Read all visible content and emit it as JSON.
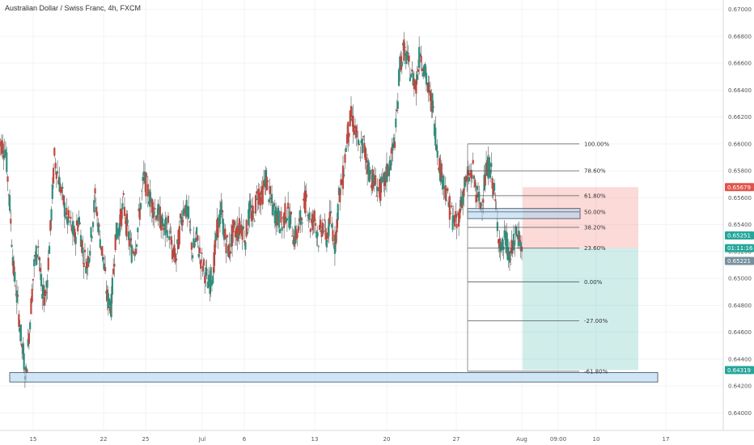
{
  "header": {
    "title": "Australian Dollar / Swiss Franc, 4h, FXCM"
  },
  "colors": {
    "up": "#2f8f7c",
    "down": "#c2473d",
    "grid": "#f0f3fa",
    "risk": "rgba(242,139,130,0.32)",
    "reward": "rgba(87,190,180,0.28)",
    "zone_fill": "rgba(170,210,240,0.55)",
    "zone_stroke": "#3a4b5c",
    "tag_red": "#e0534a",
    "tag_green": "#26a69a",
    "tag_gray": "#78909c"
  },
  "chart_data": {
    "type": "candlestick",
    "title": "Australian Dollar / Swiss Franc, 4h, FXCM",
    "ylim": [
      0.6387,
      0.6707
    ],
    "y_ticks": [
      "0.67000",
      "0.66800",
      "0.66600",
      "0.66400",
      "0.66200",
      "0.66000",
      "0.65800",
      "0.65600",
      "0.65400",
      "0.65200",
      "0.65000",
      "0.64800",
      "0.64600",
      "0.64400",
      "0.64200",
      "0.64000"
    ],
    "x_ticks": [
      "15",
      "22",
      "25",
      "Jul",
      "6",
      "13",
      "20",
      "27",
      "Aug",
      "09:00",
      "10",
      "17"
    ],
    "price_path": [
      0.66,
      0.6595,
      0.6555,
      0.6505,
      0.648,
      0.645,
      0.6428,
      0.647,
      0.651,
      0.6525,
      0.6485,
      0.649,
      0.6535,
      0.659,
      0.6575,
      0.656,
      0.6545,
      0.654,
      0.653,
      0.6545,
      0.652,
      0.651,
      0.653,
      0.656,
      0.6535,
      0.6515,
      0.6485,
      0.648,
      0.653,
      0.654,
      0.6555,
      0.6535,
      0.652,
      0.6525,
      0.655,
      0.6575,
      0.6565,
      0.6555,
      0.655,
      0.6545,
      0.6535,
      0.654,
      0.652,
      0.6515,
      0.654,
      0.6555,
      0.6545,
      0.652,
      0.653,
      0.6515,
      0.6505,
      0.6495,
      0.6505,
      0.6535,
      0.655,
      0.653,
      0.652,
      0.6535,
      0.6535,
      0.654,
      0.653,
      0.655,
      0.6545,
      0.6565,
      0.656,
      0.6575,
      0.656,
      0.655,
      0.6545,
      0.654,
      0.655,
      0.6545,
      0.653,
      0.6535,
      0.655,
      0.656,
      0.654,
      0.6545,
      0.653,
      0.654,
      0.653,
      0.6545,
      0.6525,
      0.656,
      0.6575,
      0.6605,
      0.662,
      0.661,
      0.6595,
      0.66,
      0.6585,
      0.6575,
      0.657,
      0.6565,
      0.657,
      0.658,
      0.659,
      0.661,
      0.666,
      0.667,
      0.666,
      0.665,
      0.6645,
      0.667,
      0.6655,
      0.664,
      0.663,
      0.66,
      0.658,
      0.657,
      0.6555,
      0.6545,
      0.654,
      0.6555,
      0.657,
      0.6575,
      0.658,
      0.656,
      0.6555,
      0.6575,
      0.6585,
      0.657,
      0.654,
      0.652,
      0.653,
      0.6515,
      0.6525,
      0.6535,
      0.6522
    ],
    "fibonacci": {
      "levels": [
        {
          "label": "100.00%",
          "price": 0.66
        },
        {
          "label": "78.60%",
          "price": 0.658
        },
        {
          "label": "61.80%",
          "price": 0.65615
        },
        {
          "label": "50.00%",
          "price": 0.65495
        },
        {
          "label": "38.20%",
          "price": 0.6538
        },
        {
          "label": "23.60%",
          "price": 0.65225
        },
        {
          "label": "0.00%",
          "price": 0.64975
        },
        {
          "label": "-27.00%",
          "price": 0.64685
        },
        {
          "label": "-61.80%",
          "price": 0.6431
        }
      ]
    },
    "position": {
      "entry": 0.65225,
      "stop": 0.65679,
      "target": 0.64319
    },
    "zones": [
      {
        "name": "resistance-zone",
        "low": 0.65445,
        "high": 0.6552
      },
      {
        "name": "support-zone",
        "low": 0.6423,
        "high": 0.643
      }
    ],
    "price_tags": [
      {
        "text": "0.65679",
        "kind": "red",
        "price": 0.65679
      },
      {
        "text": "0.65251",
        "kind": "green",
        "price": 0.6532
      },
      {
        "text": "01:11:16",
        "kind": "green",
        "price": 0.65225
      },
      {
        "text": "0.65221",
        "kind": "gray",
        "price": 0.6513
      },
      {
        "text": "0.64319",
        "kind": "green",
        "price": 0.64319
      }
    ]
  }
}
